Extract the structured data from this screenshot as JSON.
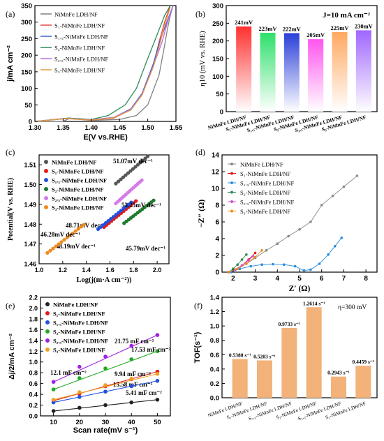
{
  "chart_data": [
    {
      "panel": "(a)",
      "type": "line",
      "xlabel": "E(V vs.RHE)",
      "ylabel": "j/mA cm⁻²",
      "xlim": [
        1.3,
        1.55
      ],
      "ylim": [
        0,
        350
      ],
      "x_ticks": [
        "1.30",
        "1.35",
        "1.40",
        "1.45",
        "1.50",
        "1.55"
      ],
      "y_ticks": [
        "0",
        "50",
        "100",
        "150",
        "200",
        "250",
        "300",
        "350"
      ],
      "legend_position": "top-left",
      "series": [
        {
          "name": "NiMnFe LDH/NF",
          "color": "#808080",
          "x": [
            1.3,
            1.35,
            1.36,
            1.38,
            1.4,
            1.45,
            1.48,
            1.5,
            1.52,
            1.53,
            1.535,
            1.54,
            1.545
          ],
          "y": [
            0,
            0,
            8,
            6,
            3,
            6,
            18,
            50,
            140,
            230,
            280,
            320,
            350
          ]
        },
        {
          "name": "S₁-NiMnFe LDH/NF",
          "color": "#e8474a",
          "x": [
            1.3,
            1.36,
            1.38,
            1.4,
            1.44,
            1.47,
            1.49,
            1.51,
            1.52,
            1.53,
            1.54
          ],
          "y": [
            0,
            10,
            6,
            4,
            10,
            35,
            80,
            170,
            240,
            300,
            350
          ]
        },
        {
          "name": "S₁.₅-NiMnFe LDH/NF",
          "color": "#3c5fd6",
          "x": [
            1.3,
            1.36,
            1.38,
            1.4,
            1.44,
            1.47,
            1.49,
            1.51,
            1.52,
            1.535,
            1.545
          ],
          "y": [
            0,
            10,
            7,
            5,
            12,
            38,
            85,
            175,
            235,
            305,
            350
          ]
        },
        {
          "name": "S₂-NiMnFe LDH/NF",
          "color": "#2e8b57",
          "x": [
            1.3,
            1.36,
            1.38,
            1.4,
            1.43,
            1.46,
            1.48,
            1.5,
            1.515,
            1.53,
            1.54
          ],
          "y": [
            0,
            10,
            8,
            6,
            18,
            50,
            100,
            190,
            255,
            320,
            350
          ]
        },
        {
          "name": "S₂.₅-NiMnFe LDH/NF",
          "color": "#b46ee0",
          "x": [
            1.3,
            1.36,
            1.38,
            1.4,
            1.44,
            1.47,
            1.49,
            1.51,
            1.525,
            1.535,
            1.545
          ],
          "y": [
            0,
            9,
            7,
            5,
            12,
            36,
            82,
            168,
            238,
            300,
            350
          ]
        },
        {
          "name": "S₃-NiMnFe LDH/NF",
          "color": "#e69a3c",
          "x": [
            1.3,
            1.36,
            1.38,
            1.4,
            1.44,
            1.47,
            1.49,
            1.51,
            1.52,
            1.53,
            1.54
          ],
          "y": [
            0,
            9,
            6,
            4,
            11,
            34,
            80,
            165,
            225,
            290,
            345
          ]
        }
      ]
    },
    {
      "panel": "(b)",
      "type": "bar",
      "ylabel": "η10 (mV vs. RHE)",
      "annotation": "J=10 mA cm⁻²",
      "ylim": [
        0,
        300
      ],
      "y_ticks": [
        "0",
        "50",
        "100",
        "150",
        "200",
        "250",
        "300"
      ],
      "categories": [
        "NiMnFe LDH/NF",
        "S₁-NiMnFe LDH/NF",
        "S₁.₅-NiMnFe LDH/NF",
        "S₂-NiMnFe LDH/NF",
        "S₂.₅-NiMnFe LDH/NF",
        "S₃-NiMnFe LDH/NF"
      ],
      "values": [
        241,
        223,
        222,
        205,
        225,
        230
      ],
      "data_labels": [
        "241mV",
        "223mV",
        "222mV",
        "205mV",
        "225mV",
        "230mV"
      ],
      "colors": [
        "#ff3030",
        "#2ee06a",
        "#2a3fd8",
        "#ff55ee",
        "#ffa860",
        "#a066ff"
      ]
    },
    {
      "panel": "(c)",
      "type": "scatter",
      "xlabel": "Log(j(m·A cm⁻²))",
      "ylabel": "Potential(V vs. RHE)",
      "xlim": [
        1.0,
        2.1
      ],
      "ylim": [
        1.46,
        1.515
      ],
      "x_ticks": [
        "1.0",
        "1.2",
        "1.4",
        "1.6",
        "1.8",
        "2.0"
      ],
      "y_ticks": [
        "1.46",
        "1.47",
        "1.48",
        "1.49",
        "1.50",
        "1.51"
      ],
      "legend_position": "top-left",
      "series": [
        {
          "name": "NiMnFe LDH/NF",
          "color": "#555555",
          "label": "51.07mV dec⁻¹",
          "x0": 1.65,
          "x1": 1.92,
          "y0": 1.5005,
          "y1": 1.5143
        },
        {
          "name": "S₁-NiMnFe LDH/NF",
          "color": "#e21b1b",
          "label": "48.71mV dec⁻¹",
          "x0": 1.55,
          "x1": 1.82,
          "y0": 1.4785,
          "y1": 1.4917
        },
        {
          "name": "S₁.₅-NiMnFe LDH/NF",
          "color": "#2050e0",
          "label": "48.19mV dec⁻¹",
          "x0": 1.5,
          "x1": 1.78,
          "y0": 1.4775,
          "y1": 1.491
        },
        {
          "name": "S₂-NiMnFe LDH/NF",
          "color": "#1f7a2e",
          "label": "45.79mV dec⁻¹",
          "x0": 1.72,
          "x1": 1.97,
          "y0": 1.4805,
          "y1": 1.492
        },
        {
          "name": "S₂.₅-NiMnFe LDH/NF",
          "color": "#d57ae8",
          "label": "53.25mV dec⁻¹",
          "x0": 1.65,
          "x1": 1.87,
          "y0": 1.4905,
          "y1": 1.5022
        },
        {
          "name": "S₃-NiMnFe LDH/NF",
          "color": "#f08a1c",
          "label": "46.28mV dec⁻¹",
          "x0": 1.07,
          "x1": 1.38,
          "y0": 1.4655,
          "y1": 1.4798
        }
      ]
    },
    {
      "panel": "(d)",
      "type": "scatter",
      "xlabel": "Z′ (Ω)",
      "ylabel": "−Z″ (Ω)",
      "xlim": [
        1.5,
        8.5
      ],
      "ylim": [
        0,
        14
      ],
      "x_ticks": [
        "2",
        "3",
        "4",
        "5",
        "6",
        "7",
        "8"
      ],
      "y_ticks": [
        "0",
        "2",
        "4",
        "6",
        "8",
        "10",
        "12",
        "14"
      ],
      "legend_position": "top-left",
      "series": [
        {
          "name": "NiMnFe LDH/NF",
          "color": "#888888",
          "x": [
            1.8,
            2.2,
            2.6,
            3.0,
            3.5,
            4.0,
            4.5,
            5.0,
            5.5,
            6.0,
            6.5,
            7.0,
            7.6
          ],
          "y": [
            0,
            0.4,
            1.0,
            1.7,
            2.6,
            3.4,
            4.3,
            5.1,
            6.0,
            8.0,
            9.1,
            10.2,
            11.5
          ]
        },
        {
          "name": "S₁-NiMnFe LDH/NF",
          "color": "#e21b1b",
          "x": [
            1.8,
            2.1,
            2.4,
            2.7,
            3.0
          ],
          "y": [
            0,
            0.3,
            0.8,
            1.5,
            2.3
          ]
        },
        {
          "name": "S₁.₅-NiMnFe LDH/NF",
          "color": "#2a8de0",
          "x": [
            1.9,
            2.3,
            2.8,
            3.3,
            3.8,
            4.3,
            4.8,
            5.2,
            5.5,
            5.9,
            6.3,
            6.6,
            6.9
          ],
          "y": [
            0,
            0.4,
            0.7,
            0.9,
            0.95,
            0.9,
            0.7,
            0.2,
            0.3,
            1.0,
            2.1,
            3.1,
            4.1
          ]
        },
        {
          "name": "S₂-NiMnFe LDH/NF",
          "color": "#2e8b57",
          "x": [
            1.8,
            2.0,
            2.2,
            2.4,
            2.6
          ],
          "y": [
            0,
            0.4,
            0.9,
            1.5,
            2.1
          ]
        },
        {
          "name": "S₂.₅-NiMnFe LDH/NF",
          "color": "#d050d0",
          "x": [
            1.8,
            2.1,
            2.4,
            2.7,
            2.9
          ],
          "y": [
            0,
            0.3,
            0.8,
            1.4,
            1.9
          ]
        },
        {
          "name": "S₃-NiMnFe LDH/NF",
          "color": "#f08a1c",
          "x": [
            1.8,
            2.2,
            2.6,
            3.0,
            3.3
          ],
          "y": [
            0,
            0.4,
            1.0,
            1.8,
            2.6
          ]
        }
      ]
    },
    {
      "panel": "(e)",
      "type": "scatter",
      "xlabel": "Scan rate(mV s⁻¹)",
      "ylabel": "Δj/2/mA cm⁻²",
      "xlim": [
        5,
        55
      ],
      "ylim": [
        0,
        2.2
      ],
      "x_ticks": [
        "10",
        "20",
        "30",
        "40",
        "50"
      ],
      "y_ticks": [
        "0.0",
        "0.2",
        "0.4",
        "0.6",
        "0.8",
        "1.0",
        "1.2",
        "1.4",
        "1.6",
        "1.8",
        "2.0",
        "2.2"
      ],
      "legend_position": "top-left",
      "x": [
        10,
        20,
        30,
        40,
        50
      ],
      "series": [
        {
          "name": "NiMnFe LDH/NF",
          "color": "#222222",
          "label": "5.41 mF cm⁻²",
          "values": [
            0.09,
            0.15,
            0.2,
            0.25,
            0.3
          ]
        },
        {
          "name": "S₁-NiMnFe LDH/NF",
          "color": "#e21b1b",
          "label": "13.58 mF cm⁻²",
          "values": [
            0.28,
            0.41,
            0.55,
            0.68,
            0.82
          ]
        },
        {
          "name": "S₁.₅-NiMnFe LDH/NF",
          "color": "#2050e0",
          "label": "9.94 mF cm⁻²",
          "values": [
            0.25,
            0.35,
            0.45,
            0.55,
            0.65
          ]
        },
        {
          "name": "S₂-NiMnFe LDH/NF",
          "color": "#22aa22",
          "label": "17.53 mF cm⁻²",
          "values": [
            0.49,
            0.7,
            0.88,
            1.05,
            1.2
          ]
        },
        {
          "name": "S₂.₅-NiMnFe LDH/NF",
          "color": "#a020e0",
          "label": "21.75 mF cm⁻²",
          "values": [
            0.63,
            0.91,
            1.1,
            1.3,
            1.5
          ]
        },
        {
          "name": "S₃-NiMnFe LDH/NF",
          "color": "#f0a020",
          "label": "12.1 mF cm⁻²",
          "values": [
            0.3,
            0.44,
            0.57,
            0.69,
            0.78
          ]
        }
      ]
    },
    {
      "panel": "(f)",
      "type": "bar",
      "ylabel": "TOF(s⁻¹)",
      "annotation": "η=300 mV",
      "ylim": [
        0,
        1.4
      ],
      "y_ticks": [
        "0.0",
        "0.2",
        "0.4",
        "0.6",
        "0.8",
        "1.0",
        "1.2",
        "1.4"
      ],
      "categories": [
        "NiMnFe LDH/NF",
        "S₁-NiMnFe LDH/NF",
        "S₁.₅-NiMnFe LDH/NF",
        "S₂-NiMnFe LDH/NF",
        "S₂.₅-NiMnFe LDH/NF",
        "S₃-NiMnFe LDH/NF"
      ],
      "values": [
        0.5388,
        0.5203,
        0.9733,
        1.2614,
        0.2943,
        0.4459
      ],
      "data_labels": [
        "0.5388 s⁻¹",
        "0.5203 s⁻¹",
        "0.9733 s⁻¹",
        "1.2614 s⁻¹",
        "0.2943 s⁻¹",
        "0.4459 s⁻¹"
      ],
      "color": "#f2b27a"
    }
  ]
}
